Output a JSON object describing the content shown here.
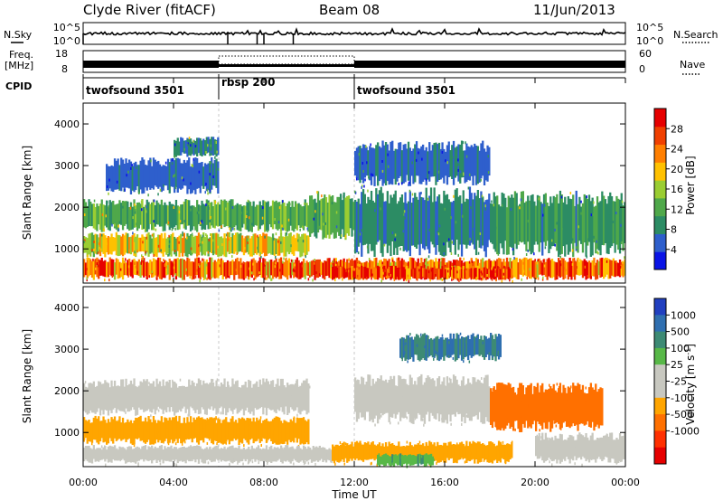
{
  "header": {
    "station": "Clyde River (fitACF)",
    "beam": "Beam 08",
    "date": "11/Jun/2013"
  },
  "top_panels": {
    "nsky_label": "N.Sky",
    "nsky_ticks": [
      "10^5",
      "10^0"
    ],
    "nsearch_label": "N.Search",
    "nsearch_ticks": [
      "10^5",
      "10^0"
    ],
    "freq_label": "Freq.",
    "freq_unit": "[MHz]",
    "freq_ticks": [
      "18",
      "8"
    ],
    "nave_label": "Nave",
    "nave_ticks": [
      "60",
      "0"
    ],
    "cpid_label": "CPID",
    "cpid_segments": [
      {
        "name": "twofsound 3501",
        "start_hour": 0,
        "end_hour": 6
      },
      {
        "name": "rbsp 200",
        "start_hour": 6,
        "end_hour": 12
      },
      {
        "name": "twofsound 3501",
        "start_hour": 12,
        "end_hour": 24
      }
    ],
    "nsky_spikes_hours": [
      0.0,
      6.4,
      7.7,
      8.0,
      9.3
    ]
  },
  "chart_data": [
    {
      "type": "heatmap",
      "name": "power",
      "ylabel": "Slant Range [km]",
      "xlabel": "",
      "x_range_hours": [
        0,
        24
      ],
      "ylim": [
        180,
        4500
      ],
      "y_ticks": [
        1000,
        2000,
        3000,
        4000
      ],
      "colorbar": {
        "label": "Power [dB]",
        "ticks": [
          4,
          8,
          12,
          16,
          20,
          24,
          28
        ],
        "range": [
          0,
          32
        ],
        "colors": [
          "#0a14e6",
          "#2e5fcc",
          "#2c8c64",
          "#4fa84a",
          "#9acd32",
          "#ffc100",
          "#ff7f00",
          "#f04000",
          "#e60000"
        ]
      },
      "bands": [
        {
          "x0": 0.0,
          "x1": 24.0,
          "y0": 250,
          "y1": 800,
          "value": 24
        },
        {
          "x0": 0.0,
          "x1": 10.0,
          "y0": 800,
          "y1": 1400,
          "value": 18
        },
        {
          "x0": 0.0,
          "x1": 10.0,
          "y0": 1400,
          "y1": 2200,
          "value": 12
        },
        {
          "x0": 1.0,
          "x1": 6.0,
          "y0": 2300,
          "y1": 3200,
          "value": 6
        },
        {
          "x0": 4.0,
          "x1": 6.0,
          "y0": 3200,
          "y1": 3700,
          "value": 8
        },
        {
          "x0": 10.0,
          "x1": 12.0,
          "y0": 1200,
          "y1": 2400,
          "value": 12
        },
        {
          "x0": 12.0,
          "x1": 18.0,
          "y0": 800,
          "y1": 2500,
          "value": 8
        },
        {
          "x0": 12.0,
          "x1": 18.0,
          "y0": 2500,
          "y1": 3600,
          "value": 6
        },
        {
          "x0": 18.0,
          "x1": 24.0,
          "y0": 800,
          "y1": 2400,
          "value": 10
        },
        {
          "x0": 11.0,
          "x1": 19.0,
          "y0": 250,
          "y1": 600,
          "value": 28
        }
      ]
    },
    {
      "type": "heatmap",
      "name": "velocity",
      "ylabel": "Slant Range [km]",
      "xlabel": "Time UT",
      "x_range_hours": [
        0,
        24
      ],
      "x_ticks": [
        "00:00",
        "04:00",
        "08:00",
        "12:00",
        "16:00",
        "20:00",
        "00:00"
      ],
      "ylim": [
        180,
        4500
      ],
      "y_ticks": [
        1000,
        2000,
        3000,
        4000
      ],
      "colorbar": {
        "label": "Velocity [m s^-1]",
        "ticks": [
          "1000",
          "500",
          "100",
          "25",
          "-25",
          "-100",
          "-500",
          "-1000"
        ],
        "colors": [
          "#2140c0",
          "#2f6fb0",
          "#3d8a74",
          "#58b848",
          "#c8c8c0",
          "#c8c8c0",
          "#ffa500",
          "#ff7000",
          "#ff3000",
          "#e60000"
        ]
      },
      "bands": [
        {
          "x0": 0.0,
          "x1": 10.0,
          "y0": 1400,
          "y1": 2300,
          "value": 0
        },
        {
          "x0": 0.0,
          "x1": 10.0,
          "y0": 700,
          "y1": 1400,
          "value": -150
        },
        {
          "x0": 0.0,
          "x1": 11.0,
          "y0": 250,
          "y1": 700,
          "value": 0
        },
        {
          "x0": 11.0,
          "x1": 19.0,
          "y0": 250,
          "y1": 800,
          "value": -150
        },
        {
          "x0": 13.0,
          "x1": 15.5,
          "y0": 180,
          "y1": 500,
          "value": 50
        },
        {
          "x0": 12.0,
          "x1": 18.0,
          "y0": 1200,
          "y1": 2400,
          "value": 0
        },
        {
          "x0": 14.0,
          "x1": 18.5,
          "y0": 2700,
          "y1": 3400,
          "value": 300
        },
        {
          "x0": 18.0,
          "x1": 23.0,
          "y0": 1000,
          "y1": 2200,
          "value": -500
        },
        {
          "x0": 20.0,
          "x1": 24.0,
          "y0": 250,
          "y1": 1000,
          "value": 0
        }
      ]
    }
  ]
}
